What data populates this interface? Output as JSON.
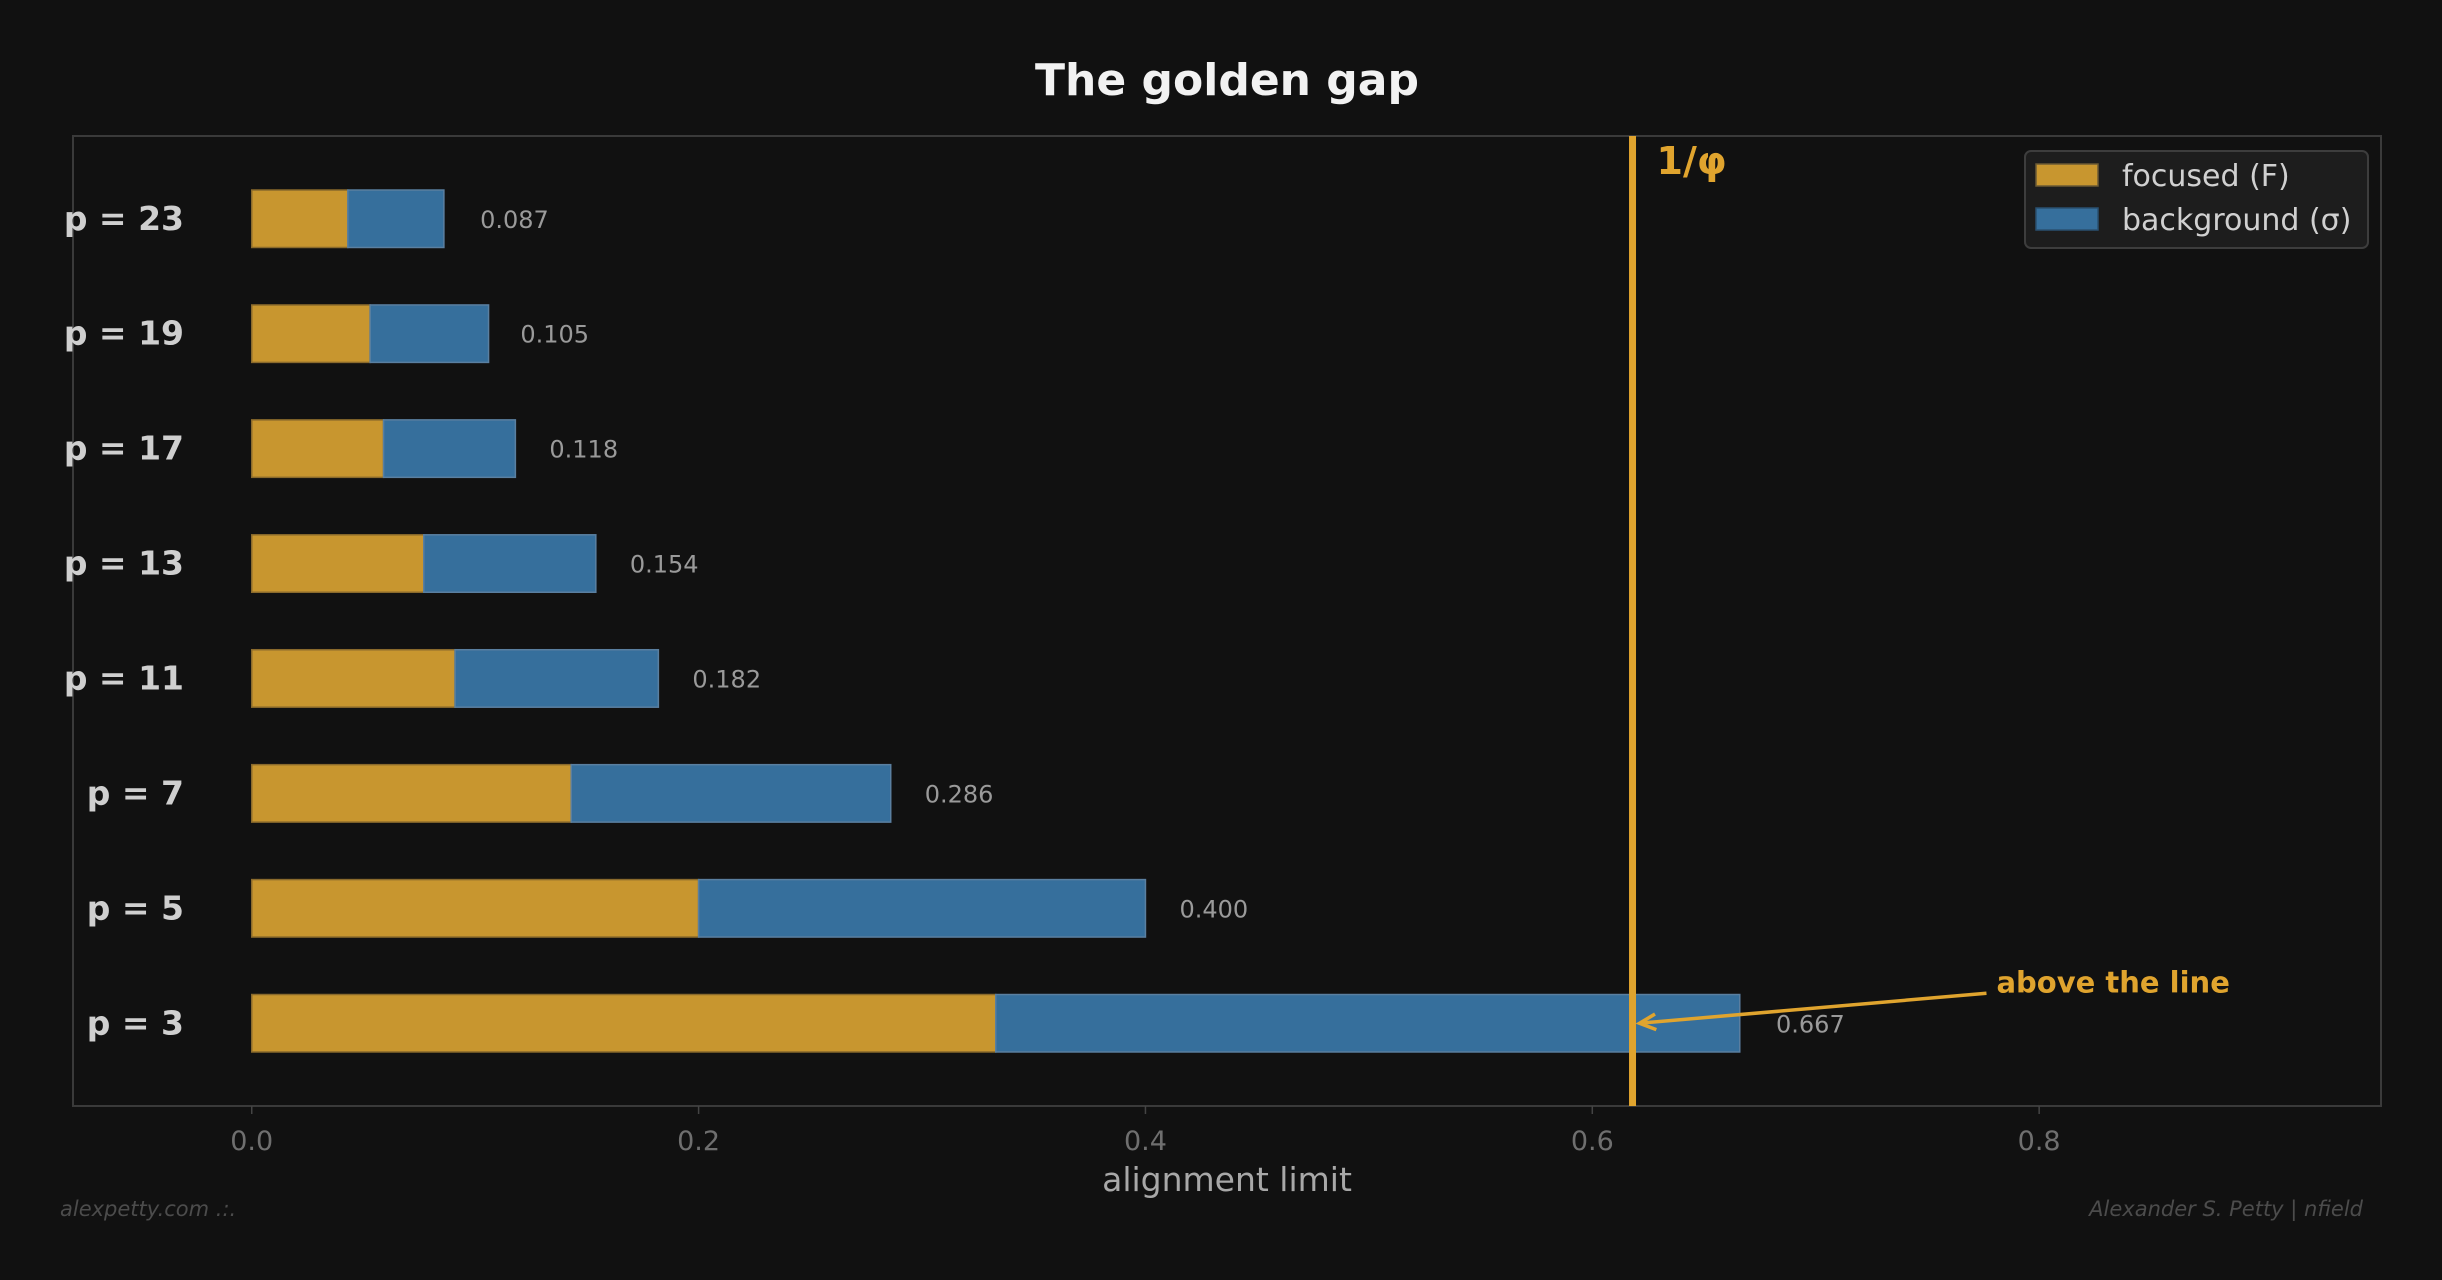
{
  "chart_data": {
    "type": "bar",
    "orientation": "horizontal",
    "stacked": true,
    "title": "The golden gap",
    "xlabel": "alignment limit",
    "ylabel": "",
    "xlim": [
      -0.08,
      0.953
    ],
    "xticks": [
      0.0,
      0.2,
      0.4,
      0.6,
      0.8
    ],
    "xtick_labels": [
      "0.0",
      "0.2",
      "0.4",
      "0.6",
      "0.8"
    ],
    "grid": false,
    "legend_position": "top-right",
    "categories": [
      "p = 3",
      "p = 5",
      "p = 7",
      "p = 11",
      "p = 13",
      "p = 17",
      "p = 19",
      "p = 23"
    ],
    "series": [
      {
        "name": "focused (F)",
        "color": "#c8962f",
        "values": [
          0.333,
          0.2,
          0.143,
          0.091,
          0.077,
          0.059,
          0.053,
          0.043
        ]
      },
      {
        "name": "background (σ)",
        "color": "#366f9c",
        "values": [
          0.333,
          0.2,
          0.143,
          0.091,
          0.077,
          0.059,
          0.053,
          0.043
        ]
      }
    ],
    "totals": [
      "0.667",
      "0.400",
      "0.286",
      "0.182",
      "0.154",
      "0.118",
      "0.105",
      "0.087"
    ],
    "reference_line": {
      "x": 0.618,
      "label": "1/φ",
      "color": "#e0a42e"
    },
    "annotation": {
      "text": "above the line",
      "target_x": 0.618,
      "target_category": "p = 3",
      "text_x": 0.78,
      "color": "#e0a42e"
    }
  },
  "footer": {
    "left": "alexpetty.com  .:.",
    "right": "Alexander S. Petty  |  nfield"
  }
}
